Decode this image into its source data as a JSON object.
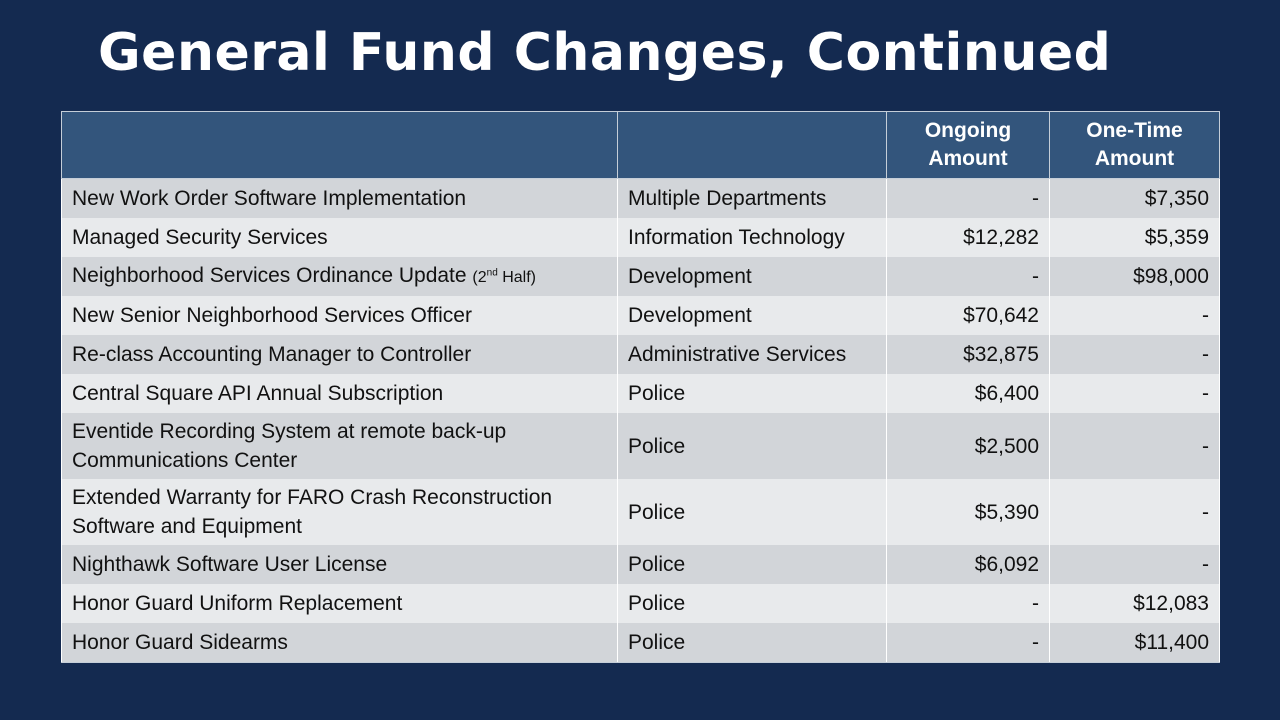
{
  "title": "General Fund Changes, Continued",
  "table": {
    "headers": [
      "",
      "",
      "Ongoing Amount",
      "One-Time Amount"
    ],
    "rows": [
      {
        "item": "New Work Order Software Implementation",
        "note_pre": "",
        "note_sup": "",
        "note_post": "",
        "department": "Multiple Departments",
        "ongoing": "-",
        "onetime": "$7,350"
      },
      {
        "item": "Managed Security Services",
        "note_pre": "",
        "note_sup": "",
        "note_post": "",
        "department": "Information Technology",
        "ongoing": "$12,282",
        "onetime": "$5,359"
      },
      {
        "item": "Neighborhood Services Ordinance Update",
        "note_pre": "(2",
        "note_sup": "nd",
        "note_post": " Half)",
        "department": "Development",
        "ongoing": "-",
        "onetime": "$98,000"
      },
      {
        "item": "New Senior Neighborhood Services Officer",
        "note_pre": "",
        "note_sup": "",
        "note_post": "",
        "department": "Development",
        "ongoing": "$70,642",
        "onetime": "-"
      },
      {
        "item": "Re-class Accounting Manager to Controller",
        "note_pre": "",
        "note_sup": "",
        "note_post": "",
        "department": "Administrative Services",
        "ongoing": "$32,875",
        "onetime": "-"
      },
      {
        "item": "Central Square API Annual Subscription",
        "note_pre": "",
        "note_sup": "",
        "note_post": "",
        "department": "Police",
        "ongoing": "$6,400",
        "onetime": "-"
      },
      {
        "item": "Eventide Recording System at remote back-up Communications Center",
        "note_pre": "",
        "note_sup": "",
        "note_post": "",
        "department": "Police",
        "ongoing": "$2,500",
        "onetime": "-"
      },
      {
        "item": "Extended Warranty for FARO Crash Reconstruction Software and Equipment",
        "note_pre": "",
        "note_sup": "",
        "note_post": "",
        "department": "Police",
        "ongoing": "$5,390",
        "onetime": "-"
      },
      {
        "item": "Nighthawk Software User License",
        "note_pre": "",
        "note_sup": "",
        "note_post": "",
        "department": "Police",
        "ongoing": "$6,092",
        "onetime": "-"
      },
      {
        "item": "Honor Guard Uniform Replacement",
        "note_pre": "",
        "note_sup": "",
        "note_post": "",
        "department": "Police",
        "ongoing": "-",
        "onetime": "$12,083"
      },
      {
        "item": "Honor Guard Sidearms",
        "note_pre": "",
        "note_sup": "",
        "note_post": "",
        "department": "Police",
        "ongoing": "-",
        "onetime": "$11,400"
      }
    ]
  },
  "colors": {
    "background": "#142a50",
    "header_fill": "#33557c",
    "row_dark": "#d2d5d9",
    "row_light": "#e8eaec"
  }
}
